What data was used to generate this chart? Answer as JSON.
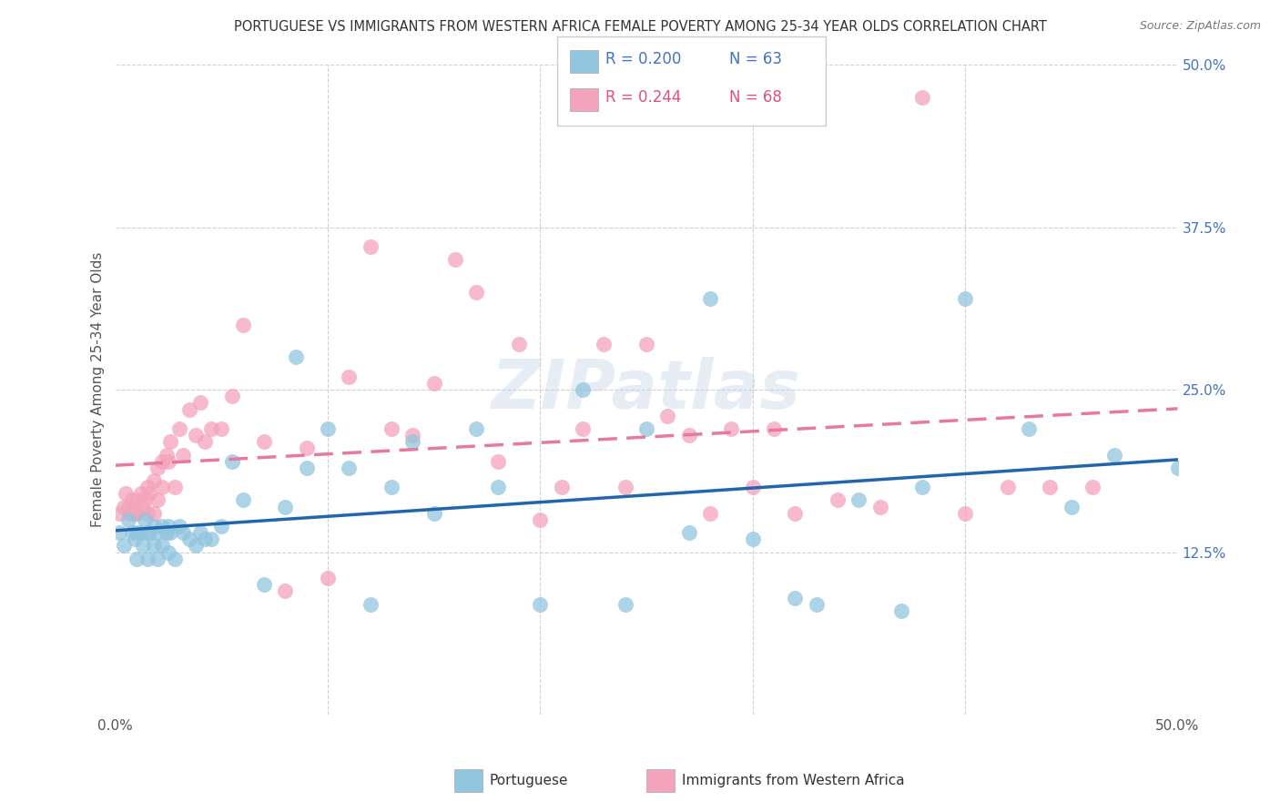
{
  "title": "PORTUGUESE VS IMMIGRANTS FROM WESTERN AFRICA FEMALE POVERTY AMONG 25-34 YEAR OLDS CORRELATION CHART",
  "source": "Source: ZipAtlas.com",
  "ylabel": "Female Poverty Among 25-34 Year Olds",
  "right_yticks": [
    0.0,
    0.125,
    0.25,
    0.375,
    0.5
  ],
  "right_yticklabels": [
    "",
    "12.5%",
    "25.0%",
    "37.5%",
    "50.0%"
  ],
  "xlim": [
    0.0,
    0.5
  ],
  "ylim": [
    0.0,
    0.5
  ],
  "legend_r_blue": "R = 0.200",
  "legend_n_blue": "N = 63",
  "legend_r_pink": "R = 0.244",
  "legend_n_pink": "N = 68",
  "watermark": "ZIPatlas",
  "blue_scatter_color": "#92c5de",
  "pink_scatter_color": "#f4a3bc",
  "blue_line_color": "#2166ac",
  "pink_line_color": "#e8799e",
  "title_color": "#333333",
  "source_color": "#777777",
  "ylabel_color": "#555555",
  "right_tick_color": "#4472c4",
  "grid_color": "#d0d0d0",
  "portuguese_x": [
    0.002,
    0.004,
    0.006,
    0.008,
    0.009,
    0.01,
    0.01,
    0.012,
    0.013,
    0.014,
    0.015,
    0.015,
    0.016,
    0.018,
    0.018,
    0.02,
    0.02,
    0.022,
    0.022,
    0.024,
    0.025,
    0.025,
    0.026,
    0.028,
    0.03,
    0.032,
    0.035,
    0.038,
    0.04,
    0.042,
    0.045,
    0.05,
    0.055,
    0.06,
    0.07,
    0.08,
    0.085,
    0.09,
    0.1,
    0.11,
    0.12,
    0.13,
    0.14,
    0.15,
    0.17,
    0.18,
    0.2,
    0.22,
    0.24,
    0.25,
    0.27,
    0.28,
    0.3,
    0.32,
    0.33,
    0.35,
    0.37,
    0.38,
    0.4,
    0.43,
    0.45,
    0.47,
    0.5
  ],
  "portuguese_y": [
    0.14,
    0.13,
    0.15,
    0.14,
    0.135,
    0.14,
    0.12,
    0.14,
    0.13,
    0.15,
    0.14,
    0.12,
    0.14,
    0.145,
    0.13,
    0.14,
    0.12,
    0.145,
    0.13,
    0.14,
    0.145,
    0.125,
    0.14,
    0.12,
    0.145,
    0.14,
    0.135,
    0.13,
    0.14,
    0.135,
    0.135,
    0.145,
    0.195,
    0.165,
    0.1,
    0.16,
    0.275,
    0.19,
    0.22,
    0.19,
    0.085,
    0.175,
    0.21,
    0.155,
    0.22,
    0.175,
    0.085,
    0.25,
    0.085,
    0.22,
    0.14,
    0.32,
    0.135,
    0.09,
    0.085,
    0.165,
    0.08,
    0.175,
    0.32,
    0.22,
    0.16,
    0.2,
    0.19
  ],
  "western_africa_x": [
    0.002,
    0.004,
    0.005,
    0.006,
    0.007,
    0.008,
    0.009,
    0.01,
    0.01,
    0.012,
    0.013,
    0.014,
    0.015,
    0.015,
    0.016,
    0.018,
    0.018,
    0.02,
    0.02,
    0.022,
    0.022,
    0.024,
    0.025,
    0.026,
    0.028,
    0.03,
    0.032,
    0.035,
    0.038,
    0.04,
    0.042,
    0.045,
    0.05,
    0.055,
    0.06,
    0.07,
    0.08,
    0.09,
    0.1,
    0.11,
    0.12,
    0.13,
    0.14,
    0.15,
    0.16,
    0.17,
    0.18,
    0.19,
    0.2,
    0.21,
    0.22,
    0.23,
    0.24,
    0.25,
    0.26,
    0.27,
    0.28,
    0.29,
    0.3,
    0.31,
    0.32,
    0.34,
    0.36,
    0.38,
    0.4,
    0.42,
    0.44,
    0.46
  ],
  "western_africa_y": [
    0.155,
    0.16,
    0.17,
    0.16,
    0.155,
    0.165,
    0.155,
    0.165,
    0.155,
    0.17,
    0.16,
    0.165,
    0.175,
    0.155,
    0.17,
    0.18,
    0.155,
    0.19,
    0.165,
    0.195,
    0.175,
    0.2,
    0.195,
    0.21,
    0.175,
    0.22,
    0.2,
    0.235,
    0.215,
    0.24,
    0.21,
    0.22,
    0.22,
    0.245,
    0.3,
    0.21,
    0.095,
    0.205,
    0.105,
    0.26,
    0.36,
    0.22,
    0.215,
    0.255,
    0.35,
    0.325,
    0.195,
    0.285,
    0.15,
    0.175,
    0.22,
    0.285,
    0.175,
    0.285,
    0.23,
    0.215,
    0.155,
    0.22,
    0.175,
    0.22,
    0.155,
    0.165,
    0.16,
    0.475,
    0.155,
    0.175,
    0.175,
    0.175
  ]
}
